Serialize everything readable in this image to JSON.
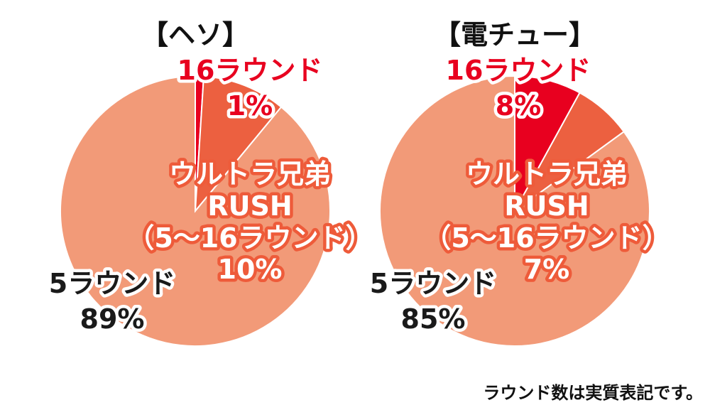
{
  "chart_data": [
    {
      "type": "pie",
      "title": "【ヘソ】",
      "slices": [
        {
          "label": "16ラウンド",
          "value": 1,
          "value_label": "1%",
          "color": "#e8001f"
        },
        {
          "label": "ウルトラ兄弟\nRUSH\n（5〜16ラウンド）",
          "value": 10,
          "value_label": "10%",
          "color": "#ec6040"
        },
        {
          "label": "5ラウンド",
          "value": 89,
          "value_label": "89%",
          "color": "#f29a78"
        }
      ]
    },
    {
      "type": "pie",
      "title": "【電チュー】",
      "slices": [
        {
          "label": "16ラウンド",
          "value": 8,
          "value_label": "8%",
          "color": "#e8001f"
        },
        {
          "label": "ウルトラ兄弟\nRUSH\n（5〜16ラウンド）",
          "value": 7,
          "value_label": "7%",
          "color": "#ec6040"
        },
        {
          "label": "5ラウンド",
          "value": 85,
          "value_label": "85%",
          "color": "#f29a78"
        }
      ]
    }
  ],
  "footnote": "ラウンド数は実質表記です。"
}
